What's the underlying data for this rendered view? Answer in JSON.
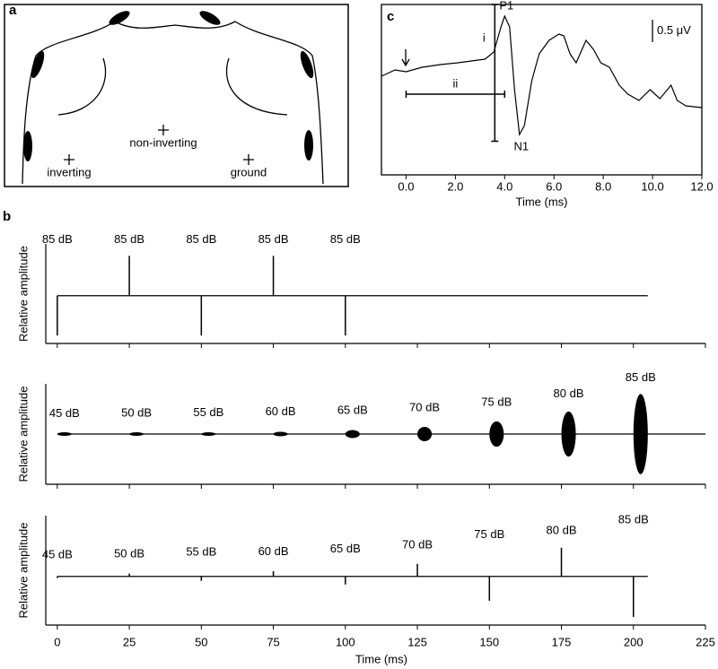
{
  "diagram": {
    "panel_label": "a",
    "electrodes": [
      {
        "label": "non-inverting"
      },
      {
        "label": "inverting"
      },
      {
        "label": "ground"
      }
    ]
  },
  "chart_data": [
    {
      "type": "line",
      "panel_label": "c",
      "xlabel": "Time (ms)",
      "x": [
        -1.0,
        -0.45,
        0.0,
        0.65,
        1.4,
        2.1,
        2.65,
        3.2,
        3.56,
        3.85,
        4.0,
        4.2,
        4.4,
        4.6,
        4.8,
        5.1,
        5.4,
        5.8,
        6.2,
        6.4,
        6.65,
        6.9,
        7.3,
        7.6,
        7.9,
        8.25,
        8.65,
        9.0,
        9.45,
        9.9,
        10.3,
        10.75,
        11.0,
        11.35,
        12.0
      ],
      "values": [
        0.0,
        0.14,
        0.1,
        0.2,
        0.26,
        0.3,
        0.34,
        0.38,
        0.54,
        1.1,
        1.34,
        1.1,
        -0.3,
        -1.3,
        -1.1,
        -0.1,
        0.5,
        0.8,
        0.94,
        0.9,
        0.5,
        0.3,
        0.8,
        0.6,
        0.3,
        0.2,
        -0.2,
        -0.4,
        -0.54,
        -0.3,
        -0.5,
        -0.2,
        -0.54,
        -0.66,
        -0.7
      ],
      "xlim": [
        -1.0,
        12.0
      ],
      "ylim": [
        -2.2,
        1.6
      ],
      "xticks": [
        {
          "value": 0,
          "label": "0.0"
        },
        {
          "value": 2,
          "label": "2.0"
        },
        {
          "value": 4,
          "label": "4.0"
        },
        {
          "value": 6,
          "label": "6.0"
        },
        {
          "value": 8,
          "label": "8.0"
        },
        {
          "value": 10,
          "label": "10.0"
        },
        {
          "value": 12,
          "label": "12.0"
        }
      ],
      "peaks": [
        {
          "label": "P1",
          "x": 4.0,
          "y": 1.34
        },
        {
          "label": "N1",
          "x": 4.6,
          "y": -1.3
        }
      ],
      "amplitude_bar": {
        "label": "i",
        "x": 3.6,
        "y": [
          -1.45,
          1.6
        ]
      },
      "latency_bar": {
        "label": "ii",
        "x": [
          0.0,
          4.0
        ],
        "y": -0.4
      },
      "scale_bar": {
        "value": 0.5,
        "label": "0.5 μV"
      }
    },
    {
      "type": "spike",
      "panel_label": "b",
      "ylabel": "Relative amplitude",
      "x": [
        0,
        25,
        50,
        75,
        100
      ],
      "values": [
        -1,
        1,
        -1,
        1,
        -1
      ],
      "labels": [
        "85 dB",
        "85 dB",
        "85 dB",
        "85 dB",
        "85 dB"
      ],
      "baseline_x": [
        0,
        205
      ],
      "xlim": [
        -4,
        225
      ],
      "ylim": [
        -1.2,
        1.3
      ],
      "xticks": [
        0,
        25,
        50,
        75,
        100,
        125,
        150,
        175,
        200,
        225
      ]
    },
    {
      "type": "burst",
      "ylabel": "Relative amplitude",
      "x": [
        2.5,
        27.5,
        52.5,
        77.5,
        102.5,
        127.5,
        152.5,
        177.5,
        202.5
      ],
      "values": [
        0.01,
        0.018,
        0.032,
        0.056,
        0.1,
        0.178,
        0.316,
        0.562,
        1
      ],
      "labels": [
        "45 dB",
        "50 dB",
        "55 dB",
        "60 dB",
        "65 dB",
        "70 dB",
        "75 dB",
        "80 dB",
        "85 dB"
      ],
      "burst_duration": 5,
      "baseline_x": [
        0,
        225
      ],
      "xlim": [
        -4,
        225
      ],
      "ylim": [
        -1.25,
        1.25
      ],
      "xticks": [
        0,
        25,
        50,
        75,
        100,
        125,
        150,
        175,
        200,
        225
      ]
    },
    {
      "type": "spike",
      "ylabel": "Relative amplitude",
      "xlabel": "Time (ms)",
      "x": [
        0,
        25,
        50,
        75,
        100,
        125,
        150,
        175,
        200
      ],
      "values": [
        -0.04,
        0.07,
        -0.11,
        0.13,
        -0.2,
        0.31,
        -0.6,
        0.71,
        -1.0
      ],
      "labels": [
        "45 dB",
        "50 dB",
        "55 dB",
        "60 dB",
        "65 dB",
        "70 dB",
        "75 dB",
        "80 dB",
        "85 dB"
      ],
      "baseline_x": [
        0,
        205
      ],
      "xlim": [
        -4,
        225
      ],
      "ylim": [
        -1.2,
        1.5
      ],
      "xticks": [
        0,
        25,
        50,
        75,
        100,
        125,
        150,
        175,
        200,
        225
      ]
    }
  ]
}
